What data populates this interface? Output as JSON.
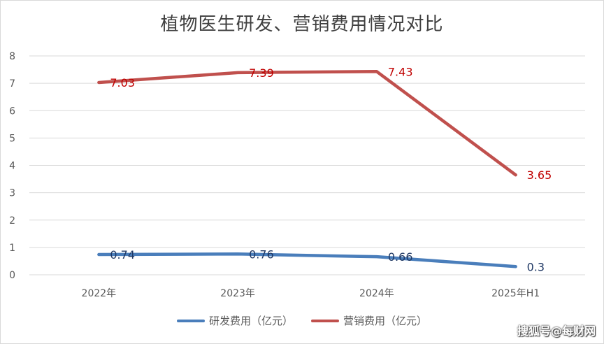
{
  "chart_data": {
    "type": "line",
    "title": "植物医生研发、营销费用情况对比",
    "categories": [
      "2022年",
      "2023年",
      "2024年",
      "2025年H1"
    ],
    "ylim": [
      0,
      8
    ],
    "yticks": [
      "0",
      "1",
      "2",
      "3",
      "4",
      "5",
      "6",
      "7",
      "8"
    ],
    "grid": true,
    "legend_position": "bottom",
    "series": [
      {
        "name": "研发费用（亿元）",
        "values": [
          0.74,
          0.76,
          0.66,
          0.3
        ],
        "labels": [
          "0.74",
          "0.76",
          "0.66",
          "0.3"
        ],
        "color": "#4a7ebb",
        "label_color": "#1f3864"
      },
      {
        "name": "营销费用（亿元）",
        "values": [
          7.03,
          7.39,
          7.43,
          3.65
        ],
        "labels": [
          "7.03",
          "7.39",
          "7.43",
          "3.65"
        ],
        "color": "#c0504d",
        "label_color": "#c00000"
      }
    ]
  },
  "watermark": "搜狐号@每财网"
}
